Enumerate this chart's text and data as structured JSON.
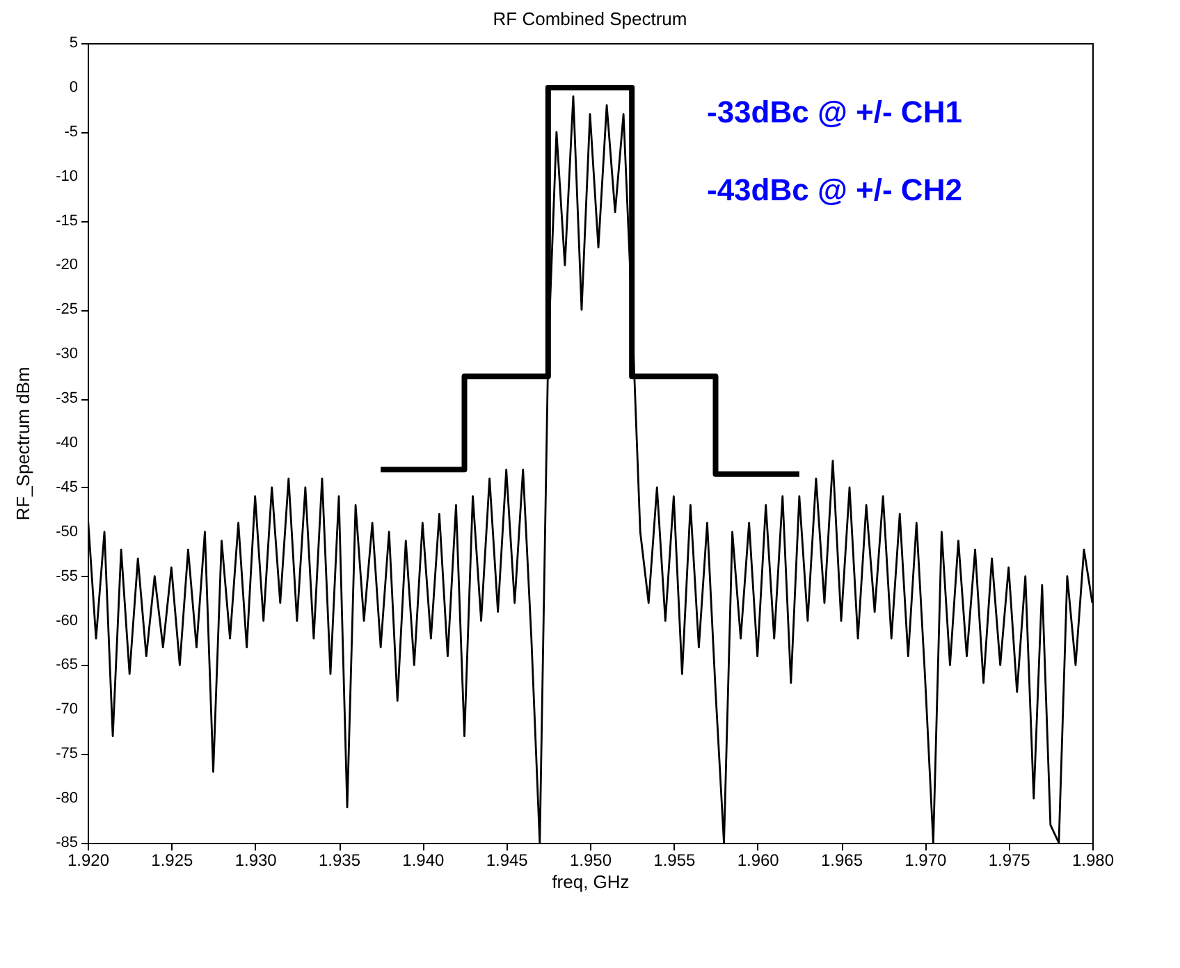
{
  "chart_data": {
    "type": "line",
    "title": "RF Combined Spectrum",
    "xlabel": "freq, GHz",
    "ylabel": "RF_Spectrum dBm",
    "annotations": [
      "-33dBc @ +/- CH1",
      "-43dBc @ +/- CH2"
    ],
    "xlim": [
      1.92,
      1.98
    ],
    "xticks": [
      {
        "value": 1.92,
        "label": "1.920"
      },
      {
        "value": 1.925,
        "label": "1.925"
      },
      {
        "value": 1.93,
        "label": "1.930"
      },
      {
        "value": 1.935,
        "label": "1.935"
      },
      {
        "value": 1.94,
        "label": "1.940"
      },
      {
        "value": 1.945,
        "label": "1.945"
      },
      {
        "value": 1.95,
        "label": "1.950"
      },
      {
        "value": 1.955,
        "label": "1.955"
      },
      {
        "value": 1.96,
        "label": "1.960"
      },
      {
        "value": 1.965,
        "label": "1.965"
      },
      {
        "value": 1.97,
        "label": "1.970"
      },
      {
        "value": 1.975,
        "label": "1.975"
      },
      {
        "value": 1.98,
        "label": "1.980"
      }
    ],
    "ylim": [
      -85,
      5
    ],
    "yticks": [
      -85,
      -80,
      -75,
      -70,
      -65,
      -60,
      -55,
      -50,
      -45,
      -40,
      -35,
      -30,
      -25,
      -20,
      -15,
      -10,
      -5,
      0,
      5
    ],
    "grid": false,
    "series": [
      {
        "type": "line",
        "color": "#000000",
        "x": [
          1.92,
          1.9205,
          1.921,
          1.9215,
          1.922,
          1.9225,
          1.923,
          1.9235,
          1.924,
          1.9245,
          1.925,
          1.9255,
          1.926,
          1.9265,
          1.927,
          1.9275,
          1.928,
          1.9285,
          1.929,
          1.9295,
          1.93,
          1.9305,
          1.931,
          1.9315,
          1.932,
          1.9325,
          1.933,
          1.9335,
          1.934,
          1.9345,
          1.935,
          1.9355,
          1.936,
          1.9365,
          1.937,
          1.9375,
          1.938,
          1.9385,
          1.939,
          1.9395,
          1.94,
          1.9405,
          1.941,
          1.9415,
          1.942,
          1.9425,
          1.943,
          1.9435,
          1.944,
          1.9445,
          1.945,
          1.9455,
          1.946,
          1.9465,
          1.947,
          1.9475,
          1.948,
          1.9485,
          1.949,
          1.9495,
          1.95,
          1.9505,
          1.951,
          1.9515,
          1.952,
          1.9525,
          1.953,
          1.9535,
          1.954,
          1.9545,
          1.955,
          1.9555,
          1.956,
          1.9565,
          1.957,
          1.9575,
          1.958,
          1.9585,
          1.959,
          1.9595,
          1.96,
          1.9605,
          1.961,
          1.9615,
          1.962,
          1.9625,
          1.963,
          1.9635,
          1.964,
          1.9645,
          1.965,
          1.9655,
          1.966,
          1.9665,
          1.967,
          1.9675,
          1.968,
          1.9685,
          1.969,
          1.9695,
          1.97,
          1.9705,
          1.971,
          1.9715,
          1.972,
          1.9725,
          1.973,
          1.9735,
          1.974,
          1.9745,
          1.975,
          1.9755,
          1.976,
          1.9765,
          1.977,
          1.9775,
          1.978,
          1.9785,
          1.979,
          1.9795,
          1.98
        ],
        "values": [
          -48,
          -62,
          -50,
          -73,
          -52,
          -66,
          -53,
          -64,
          -55,
          -63,
          -54,
          -65,
          -52,
          -63,
          -50,
          -77,
          -51,
          -62,
          -49,
          -63,
          -46,
          -60,
          -45,
          -58,
          -44,
          -60,
          -45,
          -62,
          -44,
          -66,
          -46,
          -81,
          -47,
          -60,
          -49,
          -63,
          -50,
          -69,
          -51,
          -65,
          -49,
          -62,
          -48,
          -64,
          -47,
          -73,
          -46,
          -60,
          -44,
          -59,
          -43,
          -58,
          -43,
          -62,
          -85,
          -30,
          -5,
          -20,
          -1,
          -25,
          -3,
          -18,
          -2,
          -14,
          -3,
          -25,
          -50,
          -58,
          -45,
          -60,
          -46,
          -66,
          -47,
          -63,
          -49,
          -68,
          -85,
          -50,
          -62,
          -49,
          -64,
          -47,
          -62,
          -46,
          -67,
          -46,
          -60,
          -44,
          -58,
          -42,
          -60,
          -45,
          -62,
          -47,
          -59,
          -46,
          -62,
          -48,
          -64,
          -49,
          -66,
          -85,
          -50,
          -65,
          -51,
          -64,
          -52,
          -67,
          -53,
          -65,
          -54,
          -68,
          -55,
          -80,
          -56,
          -83,
          -85,
          -55,
          -65,
          -52,
          -58
        ]
      },
      {
        "type": "step",
        "color": "#000000",
        "x": [
          1.9375,
          1.9425,
          1.9475,
          1.9525,
          1.9575,
          1.9625
        ],
        "values": [
          -43,
          -32.5,
          0,
          -32.5,
          -43.5,
          -43.5
        ]
      }
    ]
  }
}
